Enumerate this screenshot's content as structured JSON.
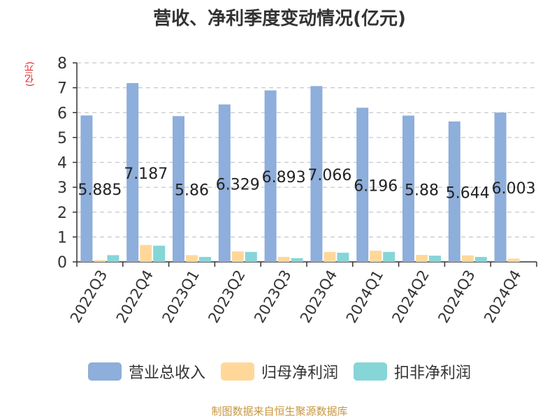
{
  "title": "营收、净利季度变动情况(亿元)",
  "source": "制图数据来自恒生聚源数据库",
  "chart_data": {
    "type": "bar",
    "title": "营收、净利季度变动情况(亿元)",
    "ylabel": "(亿元)",
    "ylim": [
      0,
      8
    ],
    "yticks": [
      0,
      1,
      2,
      3,
      4,
      5,
      6,
      7,
      8
    ],
    "grid": true,
    "legend_position": "bottom",
    "categories": [
      "2022Q3",
      "2022Q4",
      "2023Q1",
      "2023Q2",
      "2023Q3",
      "2023Q4",
      "2024Q1",
      "2024Q2",
      "2024Q3",
      "2024Q4"
    ],
    "series": [
      {
        "name": "营业总收入",
        "color": "#8eaedb",
        "values": [
          5.885,
          7.187,
          5.86,
          6.329,
          6.893,
          7.066,
          6.196,
          5.88,
          5.644,
          6.003
        ],
        "data_labels": [
          "5.885",
          "7.187",
          "5.86",
          "6.329",
          "6.893",
          "7.066",
          "6.196",
          "5.88",
          "5.644",
          "6.003"
        ]
      },
      {
        "name": "归母净利润",
        "color": "#ffd899",
        "values": [
          0.07,
          0.68,
          0.27,
          0.42,
          0.2,
          0.4,
          0.45,
          0.28,
          0.26,
          0.13
        ]
      },
      {
        "name": "扣非净利润",
        "color": "#86d5d7",
        "values": [
          0.27,
          0.65,
          0.2,
          0.4,
          0.15,
          0.37,
          0.4,
          0.25,
          0.2,
          0.0
        ]
      }
    ]
  }
}
